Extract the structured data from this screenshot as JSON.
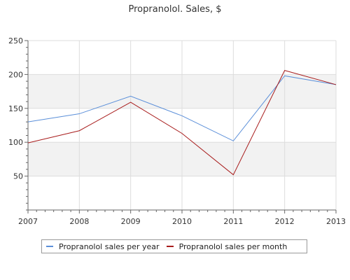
{
  "chart_data": {
    "type": "line",
    "title": "Propranolol. Sales, $",
    "xlabel": "",
    "ylabel": "",
    "categories": [
      "2007",
      "2008",
      "2009",
      "2010",
      "2011",
      "2012",
      "2013"
    ],
    "ylim": [
      0,
      250
    ],
    "yticks": [
      50,
      100,
      150,
      200,
      250
    ],
    "ytick_labels": [
      "50",
      "100",
      "150",
      "200",
      "250"
    ],
    "grid": true,
    "alternating_bands": true,
    "legend_position": "bottom",
    "series": [
      {
        "name": "Propranolol sales per year",
        "color": "#5b8fd9",
        "values": [
          130,
          142,
          168,
          139,
          102,
          198,
          185
        ]
      },
      {
        "name": "Propranolol sales per month",
        "color": "#a81c1c",
        "values": [
          99,
          117,
          159,
          113,
          52,
          206,
          185
        ]
      }
    ]
  },
  "colors": {
    "axis": "#666666",
    "grid": "#dddddd",
    "band": "#f2f2f2"
  }
}
